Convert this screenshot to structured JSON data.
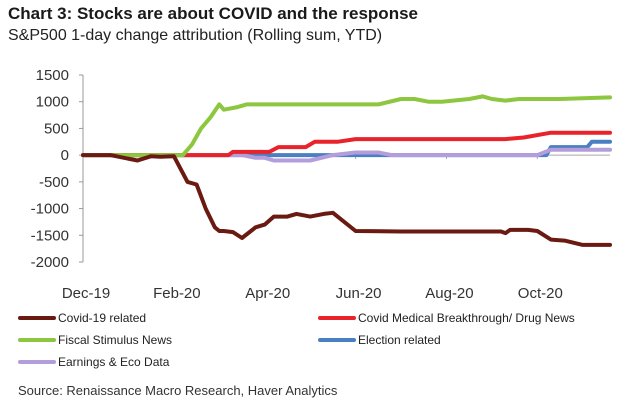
{
  "chart_data": {
    "type": "line",
    "title": "Chart 3: Stocks are about COVID and the response",
    "subtitle": "S&P500 1-day change attribution (Rolling sum, YTD)",
    "xlabel": "",
    "ylabel": "",
    "ylim": [
      -2000,
      1500
    ],
    "yticks": [
      "1500",
      "1000",
      "500",
      "0",
      "-500",
      "-1000",
      "-1500",
      "-2000"
    ],
    "yticks_values": [
      1500,
      1000,
      500,
      0,
      -500,
      -1000,
      -1500,
      -2000
    ],
    "xticks": [
      "Dec-19",
      "Feb-20",
      "Apr-20",
      "Jun-20",
      "Aug-20",
      "Oct-20"
    ],
    "x_months_range": [
      0,
      11.6
    ],
    "grid": false,
    "legend_position": "bottom",
    "series": [
      {
        "name": "Covid-19 related",
        "color": "#6b1a12",
        "x": [
          0,
          0.6,
          1.2,
          1.5,
          1.7,
          2.0,
          2.3,
          2.5,
          2.7,
          2.9,
          3.0,
          3.1,
          3.3,
          3.5,
          3.8,
          4.0,
          4.2,
          4.5,
          4.7,
          5.0,
          5.3,
          5.5,
          6.0,
          7.0,
          8.0,
          9.2,
          9.3,
          9.4,
          9.8,
          10.0,
          10.3,
          10.6,
          11.0,
          11.6
        ],
        "y": [
          0,
          0,
          -100,
          -20,
          -30,
          -20,
          -500,
          -550,
          -1000,
          -1350,
          -1420,
          -1420,
          -1440,
          -1550,
          -1350,
          -1300,
          -1150,
          -1150,
          -1100,
          -1150,
          -1100,
          -1080,
          -1420,
          -1430,
          -1430,
          -1430,
          -1460,
          -1400,
          -1400,
          -1420,
          -1580,
          -1600,
          -1680,
          -1680
        ]
      },
      {
        "name": "Covid Medical Breakthrough/ Drug News",
        "color": "#e8232a",
        "x": [
          0,
          3.2,
          3.3,
          4.1,
          4.3,
          4.9,
          5.1,
          5.6,
          6.0,
          7.0,
          9.3,
          9.7,
          10.3,
          11.6
        ],
        "y": [
          0,
          0,
          60,
          60,
          150,
          150,
          250,
          250,
          300,
          300,
          300,
          330,
          420,
          420
        ]
      },
      {
        "name": "Fiscal Stimulus News",
        "color": "#8dc63f",
        "x": [
          0,
          2.2,
          2.4,
          2.6,
          2.8,
          3.0,
          3.1,
          3.4,
          3.6,
          5.0,
          6.5,
          7.0,
          7.3,
          7.6,
          7.9,
          8.5,
          8.8,
          9.0,
          9.3,
          9.6,
          10.5,
          11.6
        ],
        "y": [
          0,
          0,
          200,
          500,
          700,
          950,
          850,
          900,
          950,
          950,
          950,
          1050,
          1050,
          1000,
          1000,
          1050,
          1100,
          1050,
          1020,
          1050,
          1050,
          1080
        ]
      },
      {
        "name": "Election related",
        "color": "#4a7fc1",
        "x": [
          0,
          10.2,
          10.3,
          11.1,
          11.2,
          11.6
        ],
        "y": [
          0,
          0,
          150,
          150,
          250,
          250
        ]
      },
      {
        "name": "Earnings & Eco Data",
        "color": "#b39ddb",
        "x": [
          0,
          3.5,
          3.8,
          4.0,
          4.2,
          4.5,
          5.0,
          5.5,
          6.0,
          6.5,
          6.8,
          7.0,
          8.0,
          10.0,
          10.3,
          11.6
        ],
        "y": [
          0,
          0,
          -50,
          -50,
          -100,
          -100,
          -100,
          0,
          50,
          50,
          0,
          0,
          0,
          0,
          100,
          100
        ]
      }
    ]
  },
  "source": "Source: Renaissance Macro Research, Haver Analytics"
}
